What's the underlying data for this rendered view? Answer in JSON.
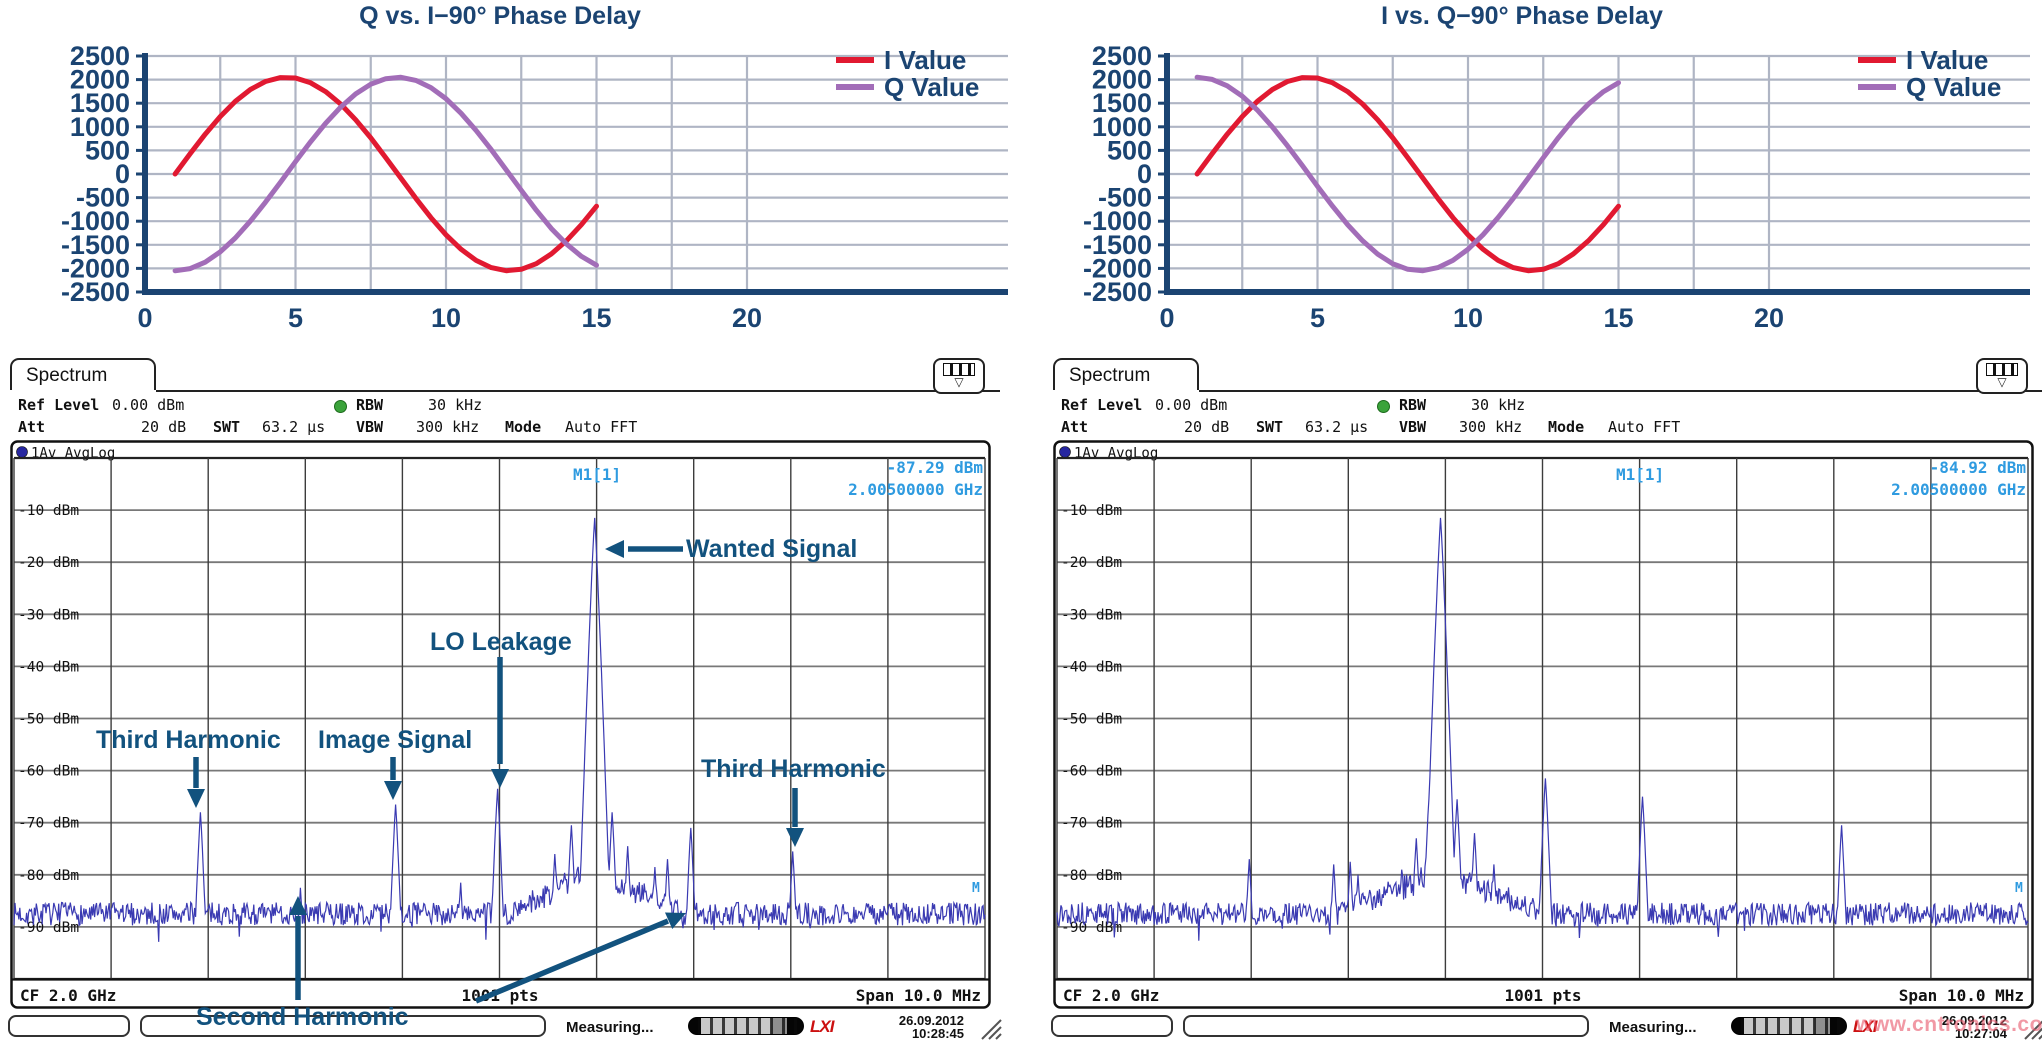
{
  "colors": {
    "navy": "#1B4472",
    "annotation": "#12527E",
    "i_red": "#E11931",
    "q_purple": "#A26DB8",
    "trace_blue": "#3A3AB2",
    "marker_blue": "#2F9BE0",
    "grid_light": "#AFB5C4",
    "green_led": "#3BA33B",
    "blue_led": "#2626A0",
    "watermark_pink": "#E9566E"
  },
  "watermark": "www.cntronics.com",
  "annotations": {
    "third_left": "Third Harmonic",
    "image": "Image Signal",
    "lo": "LO Leakage",
    "wanted": "Wanted Signal",
    "third_right": "Third Harmonic",
    "second": "Second Harmonic"
  },
  "spectra": [
    {
      "tab_label": "Spectrum",
      "header": {
        "ref_label": "Ref Level",
        "ref_value": "0.00 dBm",
        "att_label": "Att",
        "att_value": "20 dB",
        "swt_label": "SWT",
        "swt_value": "63.2 µs",
        "rbw_label": "RBW",
        "rbw_value": "30 kHz",
        "vbw_label": "VBW",
        "vbw_value": "300 kHz",
        "mode_label": "Mode",
        "mode_value": "Auto FFT"
      },
      "trace_label": "1Av AvgLog",
      "marker": {
        "name": "M1[1]",
        "level": "-87.29 dBm",
        "frequency": "2.00500000 GHz",
        "edge_label": "M"
      },
      "axis_bar": {
        "cf": "CF 2.0 GHz",
        "points": "1001 pts",
        "span": "Span 10.0 MHz"
      },
      "status": {
        "measuring": "Measuring...",
        "lxi": "LXI",
        "date": "26.09.2012",
        "time": "10:28:45"
      }
    },
    {
      "tab_label": "Spectrum",
      "header": {
        "ref_label": "Ref Level",
        "ref_value": "0.00 dBm",
        "att_label": "Att",
        "att_value": "20 dB",
        "swt_label": "SWT",
        "swt_value": "63.2 µs",
        "rbw_label": "RBW",
        "rbw_value": "30 kHz",
        "vbw_label": "VBW",
        "vbw_value": "300 kHz",
        "mode_label": "Mode",
        "mode_value": "Auto FFT"
      },
      "trace_label": "1Av AvgLog",
      "marker": {
        "name": "M1[1]",
        "level": "-84.92 dBm",
        "frequency": "2.00500000 GHz",
        "edge_label": "M"
      },
      "axis_bar": {
        "cf": "CF 2.0 GHz",
        "points": "1001 pts",
        "span": "Span 10.0 MHz"
      },
      "status": {
        "measuring": "Measuring...",
        "lxi": "LXI",
        "date": "26.09.2012",
        "time": "10:27:04"
      }
    }
  ],
  "chart_data": [
    {
      "type": "line",
      "title": "Q vs. I−90° Phase Delay",
      "x": [
        1,
        1.5,
        2,
        2.5,
        3,
        3.5,
        4,
        4.5,
        5,
        5.5,
        6,
        6.5,
        7,
        7.5,
        8,
        8.5,
        9,
        9.5,
        10,
        10.5,
        11,
        11.5,
        12,
        12.5,
        13,
        13.5,
        14,
        14.5,
        15
      ],
      "series": [
        {
          "name": "I Value",
          "color": "#E11931",
          "values": [
            0,
            432,
            844,
            1219,
            1539,
            1791,
            1960,
            2043,
            2033,
            1933,
            1746,
            1484,
            1148,
            764,
            346,
            -87,
            -517,
            -923,
            -1288,
            -1595,
            -1831,
            -1984,
            -2048,
            -2020,
            -1901,
            -1692,
            -1416,
            -1073,
            -683
          ]
        },
        {
          "name": "Q Value",
          "color": "#A26DB8",
          "values": [
            -2050,
            -2004,
            -1868,
            -1648,
            -1355,
            -998,
            -600,
            -174,
            260,
            682,
            1074,
            1415,
            1698,
            1902,
            2020,
            2048,
            1984,
            1830,
            1595,
            1287,
            921,
            516,
            86,
            -346,
            -768,
            -1157,
            -1481,
            -1746,
            -1933
          ]
        }
      ],
      "xticks": [
        0,
        5,
        10,
        15,
        20
      ],
      "xlim": [
        0,
        22.3
      ],
      "ylim": [
        -2500,
        2500
      ],
      "ystep": 500,
      "legend_position": "right-top",
      "grid": true
    },
    {
      "type": "line",
      "title": "I vs. Q−90° Phase Delay",
      "x": [
        1,
        1.5,
        2,
        2.5,
        3,
        3.5,
        4,
        4.5,
        5,
        5.5,
        6,
        6.5,
        7,
        7.5,
        8,
        8.5,
        9,
        9.5,
        10,
        10.5,
        11,
        11.5,
        12,
        12.5,
        13,
        13.5,
        14,
        14.5,
        15
      ],
      "series": [
        {
          "name": "I Value",
          "color": "#E11931",
          "values": [
            0,
            432,
            844,
            1219,
            1539,
            1791,
            1960,
            2043,
            2033,
            1933,
            1746,
            1484,
            1148,
            764,
            346,
            -87,
            -517,
            -923,
            -1288,
            -1595,
            -1831,
            -1984,
            -2048,
            -2020,
            -1901,
            -1692,
            -1416,
            -1073,
            -683
          ]
        },
        {
          "name": "Q Value",
          "color": "#A26DB8",
          "values": [
            2050,
            2004,
            1868,
            1648,
            1355,
            998,
            600,
            174,
            -260,
            -682,
            -1074,
            -1415,
            -1698,
            -1902,
            -2020,
            -2048,
            -1984,
            -1830,
            -1595,
            -1287,
            -921,
            -516,
            -86,
            346,
            768,
            1157,
            1481,
            1746,
            1933
          ]
        }
      ],
      "xticks": [
        0,
        5,
        10,
        15,
        20
      ],
      "xlim": [
        0,
        22.3
      ],
      "ylim": [
        -2500,
        2500
      ],
      "ystep": 500,
      "legend_position": "right-top",
      "grid": true
    },
    {
      "type": "line",
      "role": "spectrum-left",
      "x_axis": {
        "cf_ghz": 2.0,
        "span_mhz": 10.0,
        "points": 1001
      },
      "y_axis": {
        "ref_level_dbm": 0,
        "db_per_div": 10,
        "min_dbm": -100
      },
      "y_labels": [
        "-10 dBm",
        "-20 dBm",
        "-30 dBm",
        "-40 dBm",
        "-50 dBm",
        "-60 dBm",
        "-70 dBm",
        "-80 dBm",
        "-90 dBm"
      ],
      "noise_floor_dbm": -87.5,
      "noise_var_db": 2.2,
      "seed": 7,
      "pedestals": [
        {
          "pos_div": 5.98,
          "width_div": 0.85,
          "dbm": -78.5
        }
      ],
      "peaks": [
        {
          "pos_div": 1.92,
          "dbm": -68,
          "name": "Third Harmonic"
        },
        {
          "pos_div": 2.95,
          "dbm": -82.5,
          "name": "Second Harmonic"
        },
        {
          "pos_div": 3.93,
          "dbm": -66.5,
          "name": "Image Signal"
        },
        {
          "pos_div": 4.6,
          "dbm": -81.5
        },
        {
          "pos_div": 4.98,
          "dbm": -63.5,
          "name": "LO Leakage"
        },
        {
          "pos_div": 5.57,
          "dbm": -76
        },
        {
          "pos_div": 5.74,
          "dbm": -70.5
        },
        {
          "pos_div": 5.86,
          "dbm": -71.5
        },
        {
          "pos_div": 5.98,
          "dbm": -11.5,
          "name": "Wanted Signal"
        },
        {
          "pos_div": 6.16,
          "dbm": -68
        },
        {
          "pos_div": 6.32,
          "dbm": -74.5
        },
        {
          "pos_div": 6.6,
          "dbm": -78.5
        },
        {
          "pos_div": 6.73,
          "dbm": -77
        },
        {
          "pos_div": 6.97,
          "dbm": -71,
          "name": "Second Harmonic"
        },
        {
          "pos_div": 8.02,
          "dbm": -75.5,
          "name": "Third Harmonic"
        }
      ],
      "marker": {
        "name": "M1[1]",
        "dbm": -87.29,
        "freq_ghz": 2.005
      }
    },
    {
      "type": "line",
      "role": "spectrum-right",
      "x_axis": {
        "cf_ghz": 2.0,
        "span_mhz": 10.0,
        "points": 1001
      },
      "y_axis": {
        "ref_level_dbm": 0,
        "db_per_div": 10,
        "min_dbm": -100
      },
      "y_labels": [
        "-10 dBm",
        "-20 dBm",
        "-30 dBm",
        "-40 dBm",
        "-50 dBm",
        "-60 dBm",
        "-70 dBm",
        "-80 dBm",
        "-90 dBm"
      ],
      "noise_floor_dbm": -87.5,
      "noise_var_db": 2.2,
      "seed": 13,
      "pedestals": [
        {
          "pos_div": 3.95,
          "width_div": 1.05,
          "dbm": -79.5
        }
      ],
      "peaks": [
        {
          "pos_div": 1.98,
          "dbm": -77
        },
        {
          "pos_div": 2.85,
          "dbm": -78
        },
        {
          "pos_div": 3.02,
          "dbm": -77.5
        },
        {
          "pos_div": 3.1,
          "dbm": -80
        },
        {
          "pos_div": 3.55,
          "dbm": -79
        },
        {
          "pos_div": 3.7,
          "dbm": -73
        },
        {
          "pos_div": 3.83,
          "dbm": -65.5
        },
        {
          "pos_div": 3.95,
          "dbm": -11.5,
          "name": "Wanted Signal"
        },
        {
          "pos_div": 4.12,
          "dbm": -65.5
        },
        {
          "pos_div": 4.3,
          "dbm": -72
        },
        {
          "pos_div": 4.5,
          "dbm": -78
        },
        {
          "pos_div": 5.03,
          "dbm": -61.5
        },
        {
          "pos_div": 6.03,
          "dbm": -65
        },
        {
          "pos_div": 8.08,
          "dbm": -70.5
        }
      ],
      "marker": {
        "name": "M1[1]",
        "dbm": -84.92,
        "freq_ghz": 2.005
      }
    }
  ]
}
